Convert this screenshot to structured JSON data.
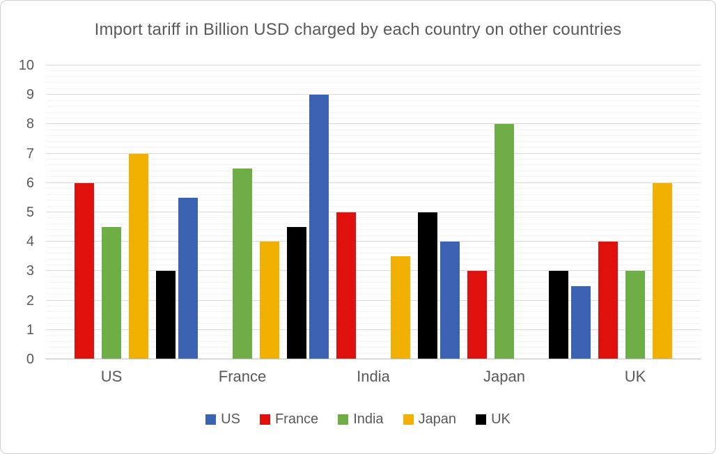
{
  "chart_data": {
    "type": "bar",
    "title": "Import tariff in Billion USD charged by each country on other countries",
    "categories": [
      "US",
      "France",
      "India",
      "Japan",
      "UK"
    ],
    "series": [
      {
        "name": "US",
        "color": "#3B63B1",
        "values": [
          0,
          5.5,
          9,
          4,
          2.5
        ]
      },
      {
        "name": "France",
        "color": "#E0100C",
        "values": [
          6,
          0,
          5,
          3,
          4
        ]
      },
      {
        "name": "India",
        "color": "#6FAD46",
        "values": [
          4.5,
          6.5,
          0,
          8,
          3
        ]
      },
      {
        "name": "Japan",
        "color": "#F2B100",
        "values": [
          7,
          4,
          3.5,
          0,
          6
        ]
      },
      {
        "name": "UK",
        "color": "#000000",
        "values": [
          3,
          4.5,
          5,
          3,
          0
        ]
      }
    ],
    "xlabel": "",
    "ylabel": "",
    "ylim": [
      0,
      10
    ],
    "y_ticks": [
      0,
      1,
      2,
      3,
      4,
      5,
      6,
      7,
      8,
      9,
      10
    ],
    "major_unit": 1,
    "minor_unit": 0.2,
    "grid": true,
    "legend_position": "bottom",
    "legend_entries": [
      "US",
      "France",
      "India",
      "Japan",
      "UK"
    ],
    "colors": {
      "title_text": "#595959",
      "axis_text": "#595959",
      "major_gridline": "#D9D9D9",
      "minor_gridline": "#F3F3F3",
      "axis_line": "#BDBDBD",
      "background": "#FFFFFF"
    }
  }
}
